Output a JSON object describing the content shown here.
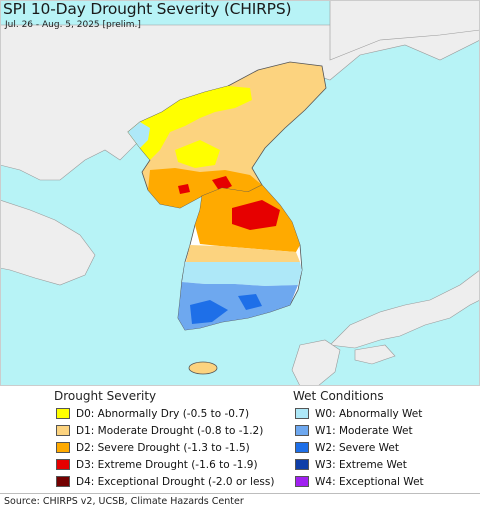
{
  "header": {
    "title": "SPI 10-Day Drought Severity (CHIRPS)",
    "subtitle": "Jul. 26 - Aug. 5, 2025 [prelim.]"
  },
  "legend": {
    "drought_title": "Drought Severity",
    "wet_title": "Wet Conditions",
    "drought_items": [
      {
        "label": "D0: Abnormally Dry (-0.5 to -0.7)",
        "color": "#ffff00"
      },
      {
        "label": "D1: Moderate Drought (-0.8 to -1.2)",
        "color": "#fcd37f"
      },
      {
        "label": "D2: Severe Drought (-1.3 to -1.5)",
        "color": "#ffaa00"
      },
      {
        "label": "D3: Extreme Drought (-1.6 to -1.9)",
        "color": "#e60000"
      },
      {
        "label": "D4: Exceptional Drought (-2.0 or less)",
        "color": "#730000"
      }
    ],
    "wet_items": [
      {
        "label": "W0: Abnormally Wet",
        "color": "#aee8f8"
      },
      {
        "label": "W1: Moderate Wet",
        "color": "#6ea8ef"
      },
      {
        "label": "W2: Severe Wet",
        "color": "#1e6fe8"
      },
      {
        "label": "W3: Extreme Wet",
        "color": "#0f3ea8"
      },
      {
        "label": "W4: Exceptional Wet",
        "color": "#a020f0"
      }
    ]
  },
  "footer": {
    "source": "Source: CHIRPS v2, UCSB, Climate Hazards Center"
  },
  "colors": {
    "ocean": "#b7f3f6",
    "land": "#eeeeee",
    "border": "#777777"
  }
}
